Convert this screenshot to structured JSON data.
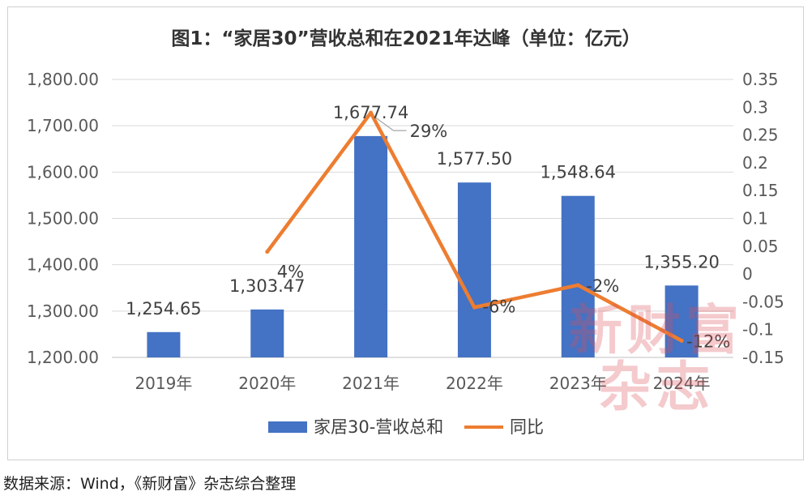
{
  "source": "数据来源：Wind，《新财富》杂志综合整理",
  "watermark": {
    "line1": "新财富",
    "line2": "杂志"
  },
  "colors": {
    "bar": "#4472C4",
    "line": "#ED7D31",
    "gridline": "#D9D9D9",
    "axis_text": "#595959"
  },
  "chart_data": {
    "type": "bar",
    "title": "图1：“家居30”营收总和在2021年达峰（单位：亿元）",
    "categories": [
      "2019年",
      "2020年",
      "2021年",
      "2022年",
      "2023年",
      "2024年"
    ],
    "series": [
      {
        "name": "家居30-营收总和",
        "type": "bar",
        "axis": "left",
        "values": [
          1254.65,
          1303.47,
          1677.74,
          1577.5,
          1548.64,
          1355.2
        ],
        "labels": [
          "1,254.65",
          "1,303.47",
          "1,677.74",
          "1,577.50",
          "1,548.64",
          "1,355.20"
        ]
      },
      {
        "name": "同比",
        "type": "line",
        "axis": "right",
        "values": [
          null,
          0.04,
          0.29,
          -0.06,
          -0.02,
          -0.12
        ],
        "labels": [
          "",
          "4%",
          "29%",
          "-6%",
          "-2%",
          "-12%"
        ]
      }
    ],
    "y_left": {
      "min": 1200,
      "max": 1800,
      "step": 100,
      "tick_labels": [
        "1,200.00",
        "1,300.00",
        "1,400.00",
        "1,500.00",
        "1,600.00",
        "1,700.00",
        "1,800.00"
      ]
    },
    "y_right": {
      "min": -0.15,
      "max": 0.35,
      "step": 0.05,
      "tick_labels": [
        "-0.15",
        "-0.1",
        "-0.05",
        "0",
        "0.05",
        "0.1",
        "0.15",
        "0.2",
        "0.25",
        "0.3",
        "0.35"
      ]
    },
    "grid": true,
    "legend": "bottom"
  }
}
